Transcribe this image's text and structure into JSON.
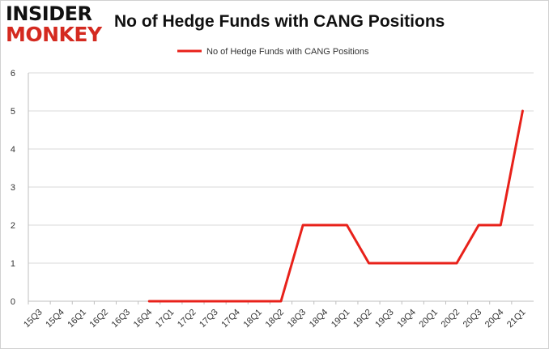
{
  "logo": {
    "line1": "INSIDER",
    "line2": "MONKEY"
  },
  "chart_data": {
    "type": "line",
    "title": "No of Hedge Funds with CANG Positions",
    "xlabel": "",
    "ylabel": "",
    "categories": [
      "15Q3",
      "15Q4",
      "16Q1",
      "16Q2",
      "16Q3",
      "16Q4",
      "17Q1",
      "17Q2",
      "17Q3",
      "17Q4",
      "18Q1",
      "18Q2",
      "18Q3",
      "18Q4",
      "19Q1",
      "19Q2",
      "19Q3",
      "19Q4",
      "20Q1",
      "20Q2",
      "20Q3",
      "20Q4",
      "21Q1"
    ],
    "series": [
      {
        "name": "No of Hedge Funds with CANG Positions",
        "color": "#e8211a",
        "values": [
          null,
          null,
          null,
          null,
          null,
          0,
          0,
          0,
          0,
          0,
          0,
          0,
          2,
          2,
          2,
          1,
          1,
          1,
          1,
          1,
          2,
          2,
          5
        ]
      }
    ],
    "ylim": [
      0,
      6
    ],
    "yticks": [
      "0",
      "1",
      "2",
      "3",
      "4",
      "5",
      "6"
    ],
    "grid": true,
    "legend": "top-center"
  }
}
